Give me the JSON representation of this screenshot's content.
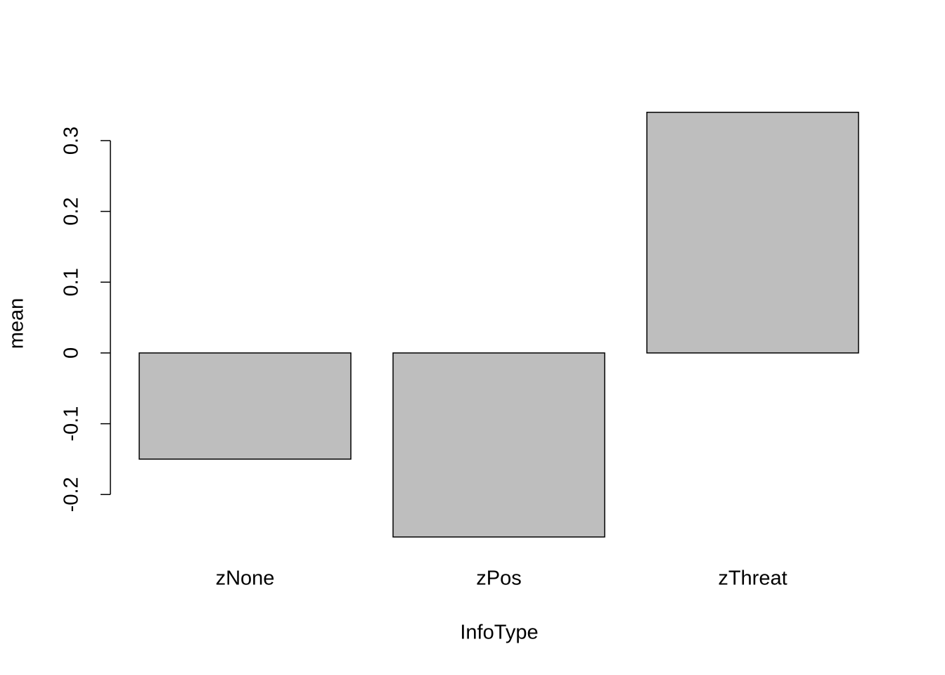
{
  "chart_data": {
    "type": "bar",
    "x_label": "InfoType",
    "y_label": "mean",
    "categories": [
      "zNone",
      "zPos",
      "zThreat"
    ],
    "values": [
      -0.15,
      -0.26,
      0.34
    ],
    "color": "#bebebe",
    "ylim": [
      -0.26,
      0.34
    ],
    "yticks": [
      -0.2,
      -0.1,
      0.0,
      0.1,
      0.2,
      0.3
    ],
    "grid": false
  }
}
